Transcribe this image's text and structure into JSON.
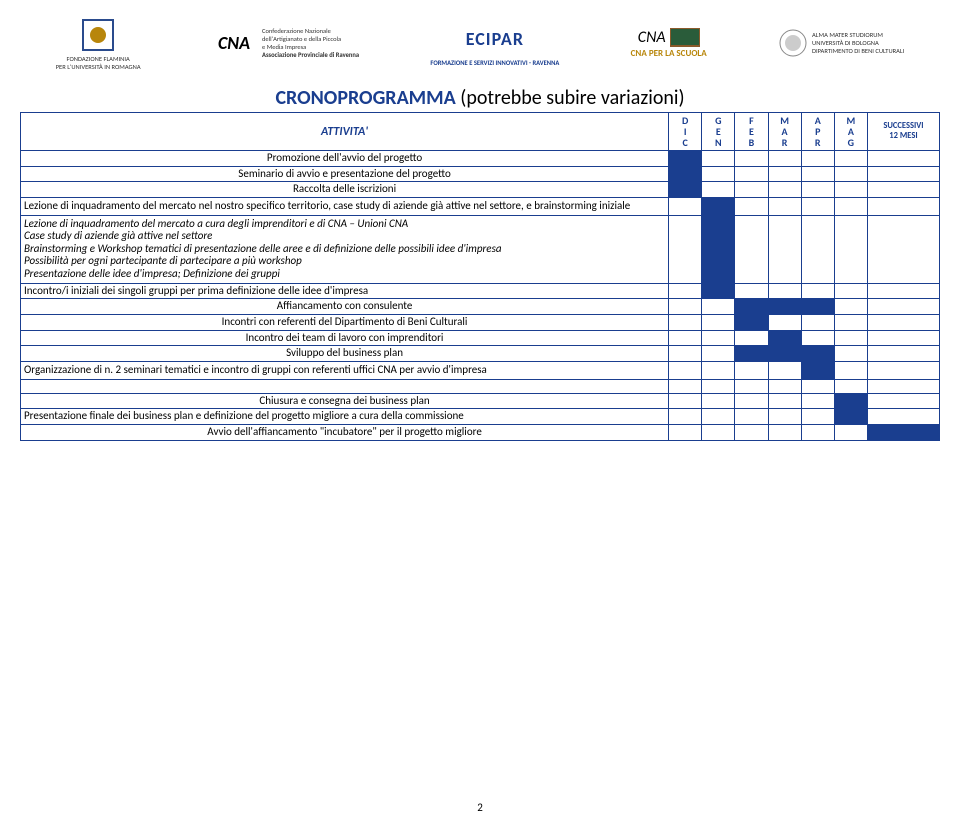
{
  "logos": {
    "flaminia": "FONDAZIONE FLAMINIA",
    "flaminia_sub": "PER L'UNIVERSITÀ IN ROMAGNA",
    "cna": "CNA",
    "cna_sub1": "Confederazione Nazionale",
    "cna_sub2": "dell'Artigianato e della Piccola",
    "cna_sub3": "e Media Impresa",
    "cna_sub4": "Associazione Provinciale di Ravenna",
    "ecipar": "ECIPAR",
    "ecipar_sub": "FORMAZIONE E SERVIZI INNOVATIVI - RAVENNA",
    "scuola_cna": "CNA",
    "scuola": "CNA PER LA SCUOLA",
    "bologna": "ALMA MATER STUDIORUM",
    "bologna_sub1": "UNIVERSITÀ DI BOLOGNA",
    "bologna_sub2": "DIPARTIMENTO DI BENI CULTURALI"
  },
  "title_main": "CRONOPROGRAMMA",
  "title_note": " (potrebbe subire variazioni)",
  "header_activity": "ATTIVITA'",
  "months": [
    "D\nI\nC",
    "G\nE\nN",
    "F\nE\nB",
    "M\nA\nR",
    "A\nP\nR",
    "M\nA\nG"
  ],
  "header_succ": "SUCCESSIVI\n12 MESI",
  "rows": [
    {
      "label": "Promozione dell'avvio del progetto",
      "fill": [
        1,
        0,
        0,
        0,
        0,
        0,
        0
      ]
    },
    {
      "label": "Seminario di avvio e presentazione del progetto",
      "fill": [
        1,
        0,
        0,
        0,
        0,
        0,
        0
      ]
    },
    {
      "label": "Raccolta delle iscrizioni",
      "fill": [
        1,
        0,
        0,
        0,
        0,
        0,
        0
      ]
    },
    {
      "label": "Lezione di inquadramento del mercato nel nostro specifico territorio, case study di aziende già attive nel settore, e brainstorming iniziale",
      "fill": [
        0,
        1,
        0,
        0,
        0,
        0,
        0
      ],
      "align": "left",
      "tall": true
    },
    {
      "label": "Lezione di inquadramento del mercato a cura degli imprenditori e di CNA – Unioni CNA\nCase study di aziende già attive nel settore\nBrainstorming e Workshop tematici di presentazione delle aree e di definizione delle possibili idee d'impresa\nPossibilità per ogni partecipante di partecipare a più workshop\nPresentazione delle idee d'impresa; Definizione dei gruppi",
      "fill": [
        0,
        1,
        0,
        0,
        0,
        0,
        0
      ],
      "italic": true,
      "small": true,
      "align": "left",
      "tall": true
    },
    {
      "label": "Incontro/i iniziali dei singoli gruppi per prima definizione delle idee d'impresa",
      "fill": [
        0,
        1,
        0,
        0,
        0,
        0,
        0
      ],
      "align": "left"
    },
    {
      "label": "Affiancamento con consulente",
      "fill": [
        0,
        0,
        1,
        1,
        1,
        0,
        0
      ]
    },
    {
      "label": "Incontri con referenti del Dipartimento di Beni Culturali",
      "fill": [
        0,
        0,
        1,
        0,
        0,
        0,
        0
      ]
    },
    {
      "label": "Incontro dei team di lavoro con imprenditori",
      "fill": [
        0,
        0,
        0,
        1,
        0,
        0,
        0
      ]
    },
    {
      "label": "Sviluppo del business plan",
      "fill": [
        0,
        0,
        1,
        1,
        1,
        0,
        0
      ]
    },
    {
      "label": "Organizzazione di n. 2 seminari tematici  e incontro di gruppi con referenti uffici CNA per avvio d'impresa",
      "fill": [
        0,
        0,
        0,
        0,
        1,
        0,
        0
      ],
      "align": "left",
      "tall": true
    },
    {
      "label": "",
      "fill": [
        0,
        0,
        0,
        0,
        0,
        0,
        0
      ]
    },
    {
      "label": "Chiusura e consegna dei business plan",
      "fill": [
        0,
        0,
        0,
        0,
        0,
        1,
        0
      ]
    },
    {
      "label": "Presentazione finale dei business plan e definizione del progetto migliore a cura della commissione",
      "fill": [
        0,
        0,
        0,
        0,
        0,
        1,
        0
      ],
      "align": "left"
    },
    {
      "label": "Avvio dell'affiancamento \"incubatore\" per il progetto migliore",
      "fill": [
        0,
        0,
        0,
        0,
        0,
        0,
        1
      ]
    }
  ],
  "pagenum": "2",
  "colors": {
    "accent": "#1a3e8f",
    "fill": "#1a3e8f",
    "bg": "#ffffff"
  }
}
